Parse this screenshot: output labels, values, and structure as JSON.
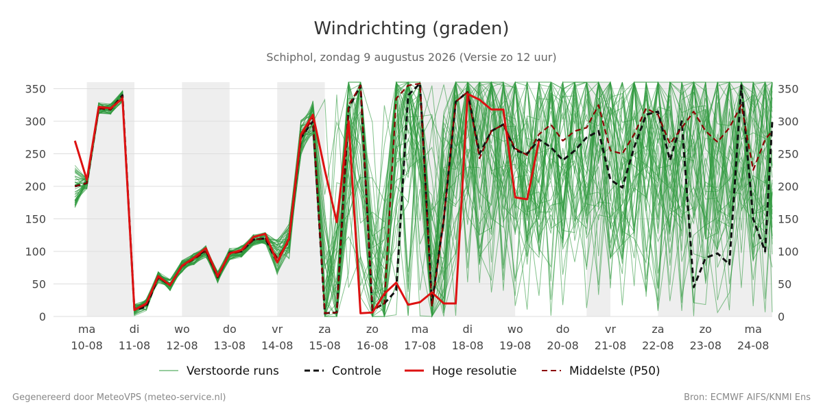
{
  "chart_data": {
    "type": "line",
    "title": "Windrichting (graden)",
    "subtitle": "Schiphol, zondag  9 augustus 2026 (Versie zo 12 uur)",
    "ylim": [
      0,
      360
    ],
    "y_ticks": [
      0,
      50,
      100,
      150,
      200,
      250,
      300,
      350
    ],
    "x_range": [
      -0.7,
      14.4
    ],
    "x_ticks": [
      {
        "x": 0,
        "day": "ma",
        "date": "10-08"
      },
      {
        "x": 1,
        "day": "di",
        "date": "11-08"
      },
      {
        "x": 2,
        "day": "wo",
        "date": "12-08"
      },
      {
        "x": 3,
        "day": "do",
        "date": "13-08"
      },
      {
        "x": 4,
        "day": "vr",
        "date": "14-08"
      },
      {
        "x": 5,
        "day": "za",
        "date": "15-08"
      },
      {
        "x": 6,
        "day": "zo",
        "date": "16-08"
      },
      {
        "x": 7,
        "day": "ma",
        "date": "17-08"
      },
      {
        "x": 8,
        "day": "di",
        "date": "18-08"
      },
      {
        "x": 9,
        "day": "wo",
        "date": "19-08"
      },
      {
        "x": 10,
        "day": "do",
        "date": "20-08"
      },
      {
        "x": 11,
        "day": "vr",
        "date": "21-08"
      },
      {
        "x": 12,
        "day": "za",
        "date": "22-08"
      },
      {
        "x": 13,
        "day": "zo",
        "date": "23-08"
      },
      {
        "x": 14,
        "day": "ma",
        "date": "24-08"
      }
    ],
    "shaded_periods": [
      [
        0,
        1
      ],
      [
        2,
        3
      ],
      [
        4,
        5
      ],
      [
        7,
        9
      ],
      [
        10.5,
        11
      ],
      [
        12,
        14.4
      ]
    ],
    "grid": "horizontal",
    "legend_position": "bottom",
    "colors": {
      "perturbed": "#2e9a3e",
      "control": "#111111",
      "high_res": "#dd1111",
      "median": "#8b0000",
      "shade": "#eeeeee",
      "grid": "#dddddd"
    },
    "legend": [
      {
        "key": "perturbed",
        "label": "Verstoorde runs"
      },
      {
        "key": "control",
        "label": "Controle"
      },
      {
        "key": "high_res",
        "label": "Hoge resolutie"
      },
      {
        "key": "median",
        "label": "Middelste (P50)"
      }
    ],
    "series": [
      {
        "name": "Controle",
        "key": "control",
        "points": [
          [
            -0.25,
            200
          ],
          [
            0,
            205
          ],
          [
            0.25,
            320
          ],
          [
            0.5,
            318
          ],
          [
            0.75,
            340
          ],
          [
            1,
            10
          ],
          [
            1.25,
            15
          ],
          [
            1.5,
            60
          ],
          [
            1.75,
            48
          ],
          [
            2,
            78
          ],
          [
            2.25,
            90
          ],
          [
            2.5,
            102
          ],
          [
            2.75,
            60
          ],
          [
            3,
            98
          ],
          [
            3.25,
            100
          ],
          [
            3.5,
            118
          ],
          [
            3.75,
            120
          ],
          [
            4,
            83
          ],
          [
            4.25,
            120
          ],
          [
            4.5,
            275
          ],
          [
            4.75,
            300
          ],
          [
            5,
            5
          ],
          [
            5.25,
            6
          ],
          [
            5.5,
            320
          ],
          [
            5.75,
            355
          ],
          [
            6,
            10
          ],
          [
            6.25,
            20
          ],
          [
            6.5,
            40
          ],
          [
            6.75,
            340
          ],
          [
            7,
            358
          ],
          [
            7.25,
            20
          ],
          [
            7.5,
            150
          ],
          [
            7.75,
            330
          ],
          [
            8,
            345
          ],
          [
            8.25,
            250
          ],
          [
            8.5,
            285
          ],
          [
            8.75,
            295
          ],
          [
            9,
            255
          ],
          [
            9.25,
            250
          ],
          [
            9.5,
            272
          ],
          [
            9.75,
            260
          ],
          [
            10,
            240
          ],
          [
            10.25,
            255
          ],
          [
            10.5,
            275
          ],
          [
            10.75,
            285
          ],
          [
            11,
            210
          ],
          [
            11.25,
            198
          ],
          [
            11.5,
            260
          ],
          [
            11.75,
            310
          ],
          [
            12,
            315
          ],
          [
            12.25,
            240
          ],
          [
            12.5,
            300
          ],
          [
            12.75,
            45
          ],
          [
            13,
            90
          ],
          [
            13.25,
            97
          ],
          [
            13.5,
            80
          ],
          [
            13.75,
            355
          ],
          [
            14,
            150
          ],
          [
            14.25,
            100
          ],
          [
            14.4,
            300
          ]
        ]
      },
      {
        "name": "Hoge resolutie",
        "key": "high_res",
        "points": [
          [
            -0.25,
            270
          ],
          [
            0,
            210
          ],
          [
            0.25,
            322
          ],
          [
            0.5,
            320
          ],
          [
            0.75,
            335
          ],
          [
            1,
            10
          ],
          [
            1.25,
            20
          ],
          [
            1.5,
            62
          ],
          [
            1.75,
            48
          ],
          [
            2,
            78
          ],
          [
            2.25,
            90
          ],
          [
            2.5,
            105
          ],
          [
            2.75,
            62
          ],
          [
            3,
            97
          ],
          [
            3.25,
            102
          ],
          [
            3.5,
            122
          ],
          [
            3.75,
            127
          ],
          [
            4,
            83
          ],
          [
            4.25,
            120
          ],
          [
            4.5,
            280
          ],
          [
            4.75,
            310
          ],
          [
            5,
            225
          ],
          [
            5.25,
            145
          ],
          [
            5.5,
            300
          ],
          [
            5.75,
            5
          ],
          [
            6,
            6
          ],
          [
            6.25,
            35
          ],
          [
            6.5,
            52
          ],
          [
            6.75,
            18
          ],
          [
            7,
            22
          ],
          [
            7.25,
            37
          ],
          [
            7.5,
            20
          ],
          [
            7.75,
            20
          ],
          [
            8,
            342
          ],
          [
            8.25,
            333
          ],
          [
            8.5,
            318
          ],
          [
            8.75,
            318
          ],
          [
            9,
            183
          ],
          [
            9.25,
            180
          ],
          [
            9.5,
            270
          ]
        ]
      },
      {
        "name": "Middelste (P50)",
        "key": "median",
        "points": [
          [
            -0.25,
            200
          ],
          [
            0,
            205
          ],
          [
            0.25,
            320
          ],
          [
            0.5,
            318
          ],
          [
            0.75,
            338
          ],
          [
            1,
            10
          ],
          [
            1.25,
            18
          ],
          [
            1.5,
            60
          ],
          [
            1.75,
            48
          ],
          [
            2,
            77
          ],
          [
            2.25,
            88
          ],
          [
            2.5,
            100
          ],
          [
            2.75,
            60
          ],
          [
            3,
            96
          ],
          [
            3.25,
            100
          ],
          [
            3.5,
            118
          ],
          [
            3.75,
            120
          ],
          [
            4,
            90
          ],
          [
            4.25,
            115
          ],
          [
            4.5,
            275
          ],
          [
            4.75,
            305
          ],
          [
            5,
            5
          ],
          [
            5.25,
            6
          ],
          [
            5.5,
            325
          ],
          [
            5.75,
            355
          ],
          [
            6,
            10
          ],
          [
            6.25,
            20
          ],
          [
            6.5,
            335
          ],
          [
            6.75,
            355
          ],
          [
            7,
            358
          ],
          [
            7.25,
            15
          ],
          [
            7.5,
            150
          ],
          [
            7.75,
            330
          ],
          [
            8,
            345
          ],
          [
            8.25,
            243
          ],
          [
            8.5,
            285
          ],
          [
            8.75,
            295
          ],
          [
            9,
            258
          ],
          [
            9.25,
            248
          ],
          [
            9.5,
            280
          ],
          [
            9.75,
            295
          ],
          [
            10,
            270
          ],
          [
            10.25,
            285
          ],
          [
            10.5,
            290
          ],
          [
            10.75,
            325
          ],
          [
            11,
            255
          ],
          [
            11.25,
            250
          ],
          [
            11.5,
            280
          ],
          [
            11.75,
            320
          ],
          [
            12,
            310
          ],
          [
            12.25,
            265
          ],
          [
            12.5,
            290
          ],
          [
            12.75,
            315
          ],
          [
            13,
            285
          ],
          [
            13.25,
            268
          ],
          [
            13.5,
            290
          ],
          [
            13.75,
            325
          ],
          [
            14,
            225
          ],
          [
            14.25,
            272
          ],
          [
            14.4,
            285
          ]
        ]
      }
    ]
  },
  "footer": {
    "left": "Gegenereerd door MeteoVPS (meteo-service.nl)",
    "right": "Bron: ECMWF AIFS/KNMI Ens"
  }
}
